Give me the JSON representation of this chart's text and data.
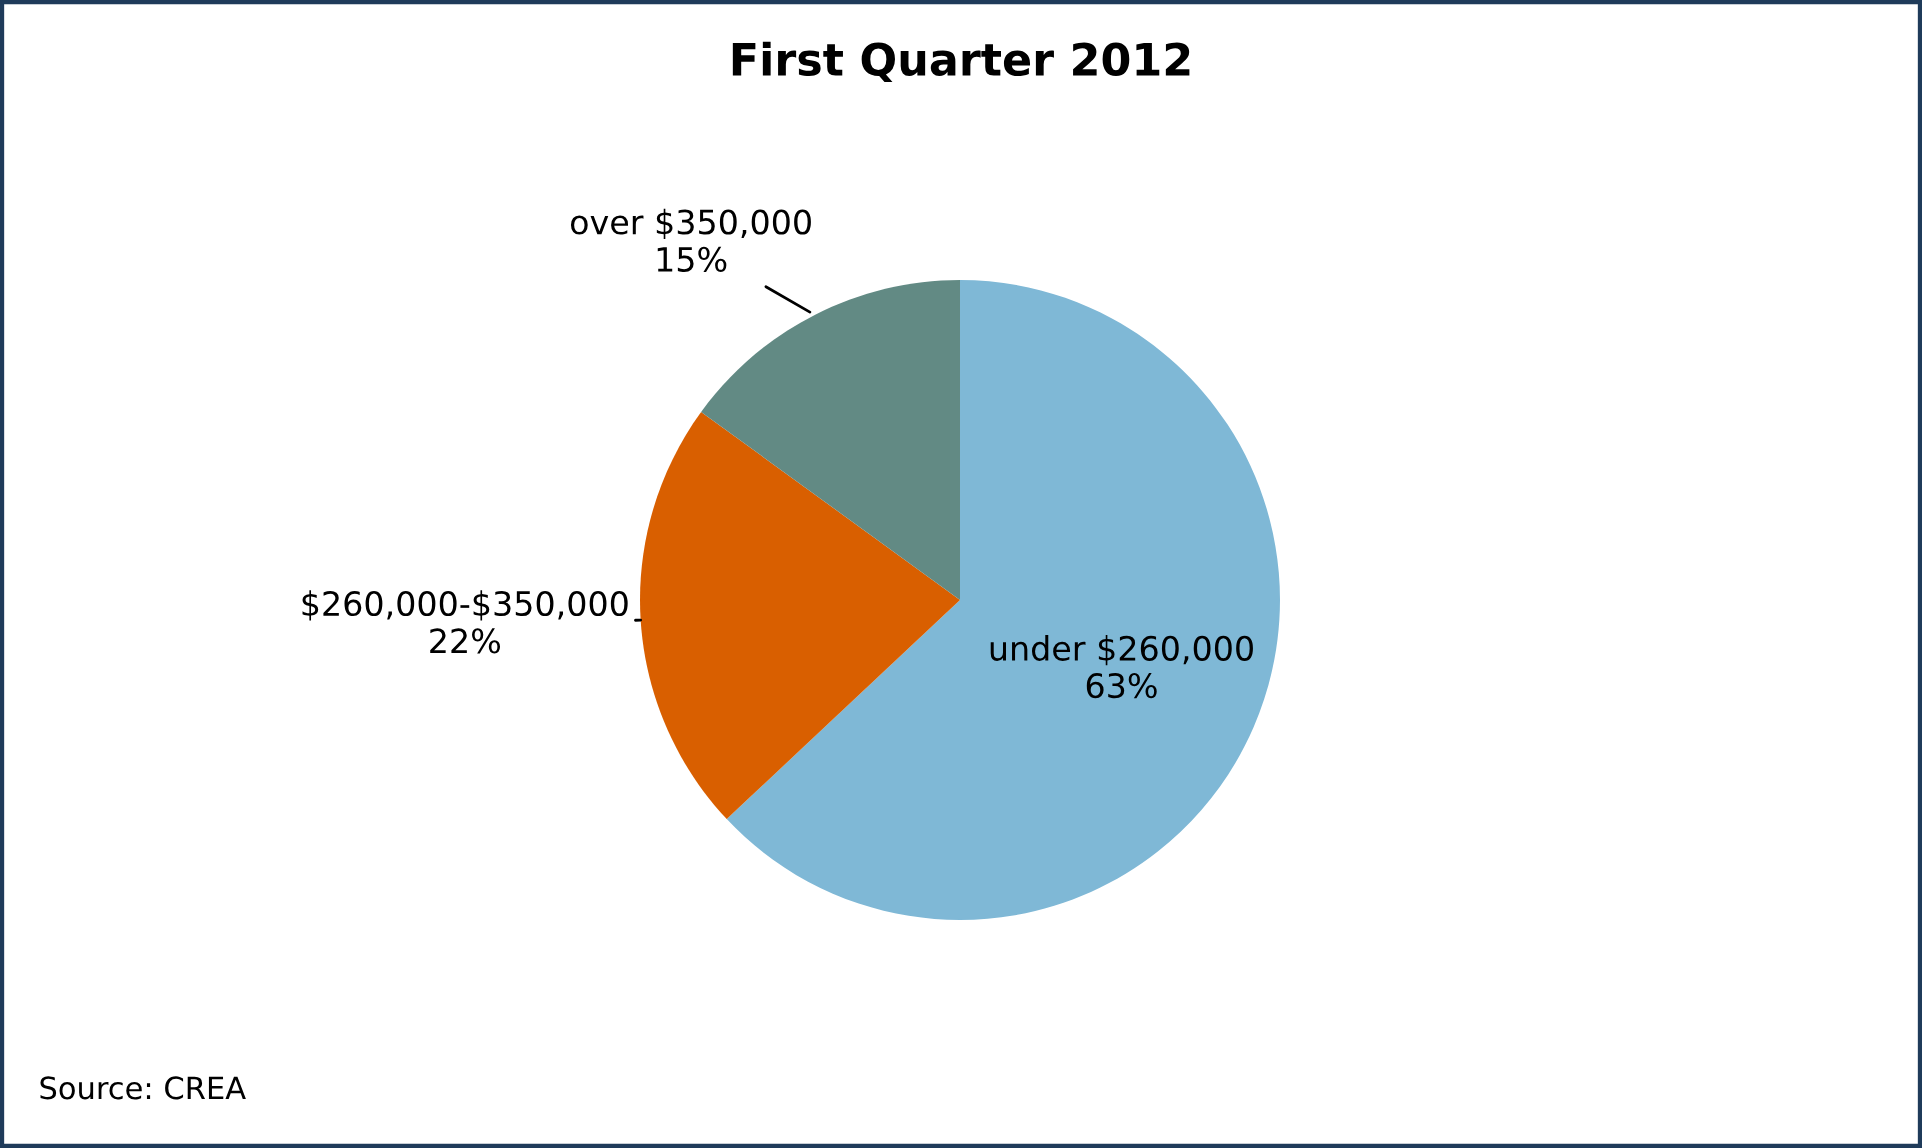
{
  "chart_data": {
    "type": "pie",
    "title": "First Quarter 2012",
    "categories": [
      "under $260,000",
      "$260,000-$350,000",
      "over $350,000"
    ],
    "values": [
      63,
      22,
      15
    ],
    "colors": [
      "#7fb8d6",
      "#d95f00",
      "#628a84"
    ],
    "value_labels": [
      "63%",
      "22%",
      "15%"
    ],
    "annotations": [
      "Source: CREA"
    ]
  }
}
